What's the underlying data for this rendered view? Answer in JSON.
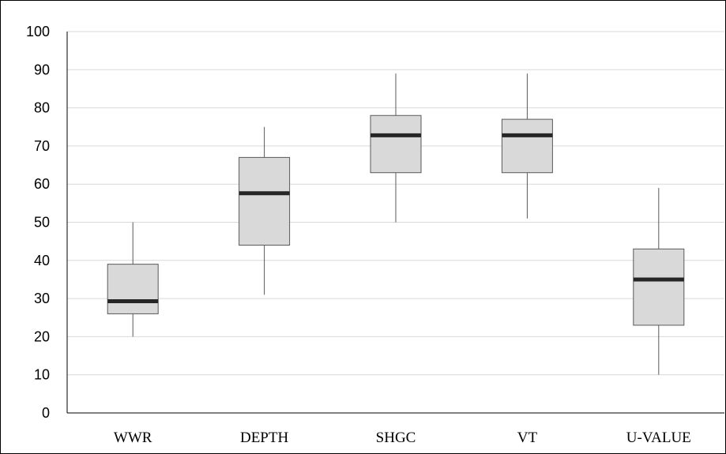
{
  "chart_data": {
    "type": "box",
    "title": "",
    "xlabel": "",
    "ylabel": "",
    "ylim": [
      0,
      100
    ],
    "yticks": [
      0,
      10,
      20,
      30,
      40,
      50,
      60,
      70,
      80,
      90,
      100
    ],
    "grid": true,
    "legend": "none",
    "categories": [
      "WWR",
      "DEPTH",
      "SHGC",
      "VT",
      "U-VALUE"
    ],
    "boxes": [
      {
        "category": "WWR",
        "min": 20,
        "q1": 26,
        "median": 29.3,
        "q3": 39,
        "max": 50
      },
      {
        "category": "DEPTH",
        "min": 31,
        "q1": 44,
        "median": 57.6,
        "q3": 67,
        "max": 75
      },
      {
        "category": "SHGC",
        "min": 50,
        "q1": 63,
        "median": 72.8,
        "q3": 78,
        "max": 89
      },
      {
        "category": "VT",
        "min": 51,
        "q1": 63,
        "median": 72.8,
        "q3": 77,
        "max": 89
      },
      {
        "category": "U-VALUE",
        "min": 10,
        "q1": 23,
        "median": 35,
        "q3": 43,
        "max": 59
      }
    ],
    "colors": {
      "box_fill": "#d9d9d9",
      "box_stroke": "#595959",
      "median": "#262626",
      "whisker": "#595959",
      "grid": "#d9d9d9",
      "axis": "#000000"
    }
  }
}
